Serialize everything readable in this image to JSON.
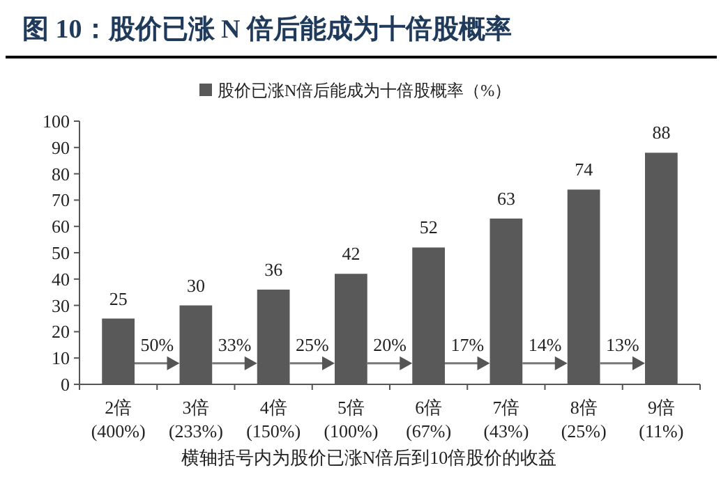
{
  "chart_data": {
    "type": "bar",
    "title": "图 10：股价已涨 N 倍后能成为十倍股概率",
    "categories": [
      "2倍\n(400%)",
      "3倍\n(233%)",
      "4倍\n(150%)",
      "5倍\n(100%)",
      "6倍\n(67%)",
      "7倍\n(43%)",
      "8倍\n(25%)",
      "9倍\n(11%)"
    ],
    "series": [
      {
        "name": "股价已涨N倍后能成为十倍股概率（%）",
        "color": "#595959",
        "values": [
          25,
          30,
          36,
          42,
          52,
          63,
          74,
          88
        ]
      }
    ],
    "data_labels": true,
    "legend": "top",
    "grid": false,
    "ylim": [
      0,
      100
    ],
    "yticks": [
      0,
      10,
      20,
      30,
      40,
      50,
      60,
      70,
      80,
      90,
      100
    ],
    "xlabel": "横轴括号内为股价已涨N倍后到10倍股价的收益",
    "annotations": [
      "50%",
      "33%",
      "25%",
      "20%",
      "17%",
      "14%",
      "13%"
    ]
  }
}
